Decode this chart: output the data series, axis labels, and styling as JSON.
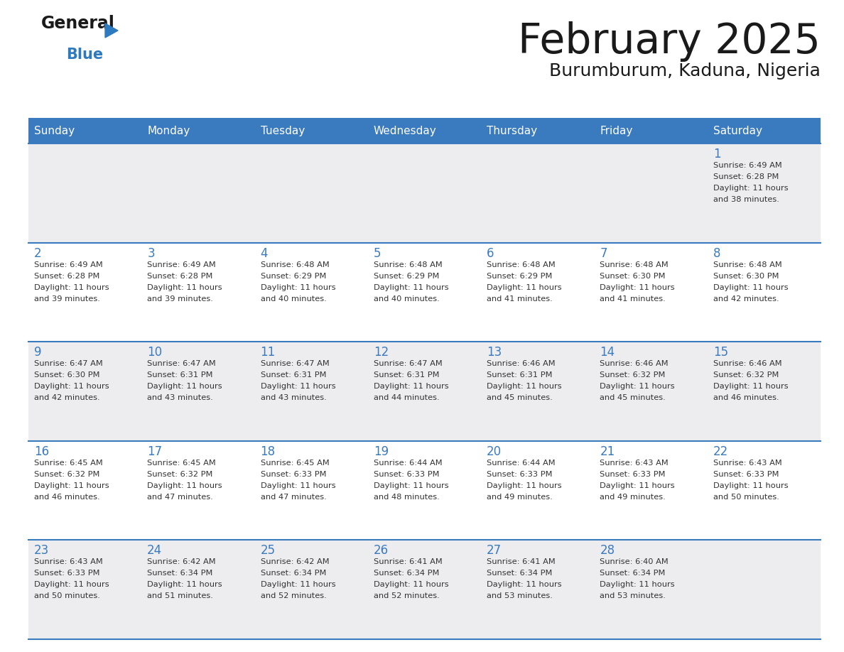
{
  "title": "February 2025",
  "subtitle": "Burumburum, Kaduna, Nigeria",
  "header_color": "#3a7abf",
  "header_text_color": "#ffffff",
  "day_names": [
    "Sunday",
    "Monday",
    "Tuesday",
    "Wednesday",
    "Thursday",
    "Friday",
    "Saturday"
  ],
  "bg_color": "#ffffff",
  "cell_bg_even": "#ededf0",
  "cell_bg_odd": "#ffffff",
  "date_color": "#3a7abf",
  "text_color": "#333333",
  "line_color": "#3a7abf",
  "logo_general_color": "#1a1a1a",
  "logo_blue_color": "#2e7abf",
  "calendar_data": [
    [
      null,
      null,
      null,
      null,
      null,
      null,
      {
        "day": 1,
        "sunrise": "6:49 AM",
        "sunset": "6:28 PM",
        "daylight": "11 hours and 38 minutes."
      }
    ],
    [
      {
        "day": 2,
        "sunrise": "6:49 AM",
        "sunset": "6:28 PM",
        "daylight": "11 hours and 39 minutes."
      },
      {
        "day": 3,
        "sunrise": "6:49 AM",
        "sunset": "6:28 PM",
        "daylight": "11 hours and 39 minutes."
      },
      {
        "day": 4,
        "sunrise": "6:48 AM",
        "sunset": "6:29 PM",
        "daylight": "11 hours and 40 minutes."
      },
      {
        "day": 5,
        "sunrise": "6:48 AM",
        "sunset": "6:29 PM",
        "daylight": "11 hours and 40 minutes."
      },
      {
        "day": 6,
        "sunrise": "6:48 AM",
        "sunset": "6:29 PM",
        "daylight": "11 hours and 41 minutes."
      },
      {
        "day": 7,
        "sunrise": "6:48 AM",
        "sunset": "6:30 PM",
        "daylight": "11 hours and 41 minutes."
      },
      {
        "day": 8,
        "sunrise": "6:48 AM",
        "sunset": "6:30 PM",
        "daylight": "11 hours and 42 minutes."
      }
    ],
    [
      {
        "day": 9,
        "sunrise": "6:47 AM",
        "sunset": "6:30 PM",
        "daylight": "11 hours and 42 minutes."
      },
      {
        "day": 10,
        "sunrise": "6:47 AM",
        "sunset": "6:31 PM",
        "daylight": "11 hours and 43 minutes."
      },
      {
        "day": 11,
        "sunrise": "6:47 AM",
        "sunset": "6:31 PM",
        "daylight": "11 hours and 43 minutes."
      },
      {
        "day": 12,
        "sunrise": "6:47 AM",
        "sunset": "6:31 PM",
        "daylight": "11 hours and 44 minutes."
      },
      {
        "day": 13,
        "sunrise": "6:46 AM",
        "sunset": "6:31 PM",
        "daylight": "11 hours and 45 minutes."
      },
      {
        "day": 14,
        "sunrise": "6:46 AM",
        "sunset": "6:32 PM",
        "daylight": "11 hours and 45 minutes."
      },
      {
        "day": 15,
        "sunrise": "6:46 AM",
        "sunset": "6:32 PM",
        "daylight": "11 hours and 46 minutes."
      }
    ],
    [
      {
        "day": 16,
        "sunrise": "6:45 AM",
        "sunset": "6:32 PM",
        "daylight": "11 hours and 46 minutes."
      },
      {
        "day": 17,
        "sunrise": "6:45 AM",
        "sunset": "6:32 PM",
        "daylight": "11 hours and 47 minutes."
      },
      {
        "day": 18,
        "sunrise": "6:45 AM",
        "sunset": "6:33 PM",
        "daylight": "11 hours and 47 minutes."
      },
      {
        "day": 19,
        "sunrise": "6:44 AM",
        "sunset": "6:33 PM",
        "daylight": "11 hours and 48 minutes."
      },
      {
        "day": 20,
        "sunrise": "6:44 AM",
        "sunset": "6:33 PM",
        "daylight": "11 hours and 49 minutes."
      },
      {
        "day": 21,
        "sunrise": "6:43 AM",
        "sunset": "6:33 PM",
        "daylight": "11 hours and 49 minutes."
      },
      {
        "day": 22,
        "sunrise": "6:43 AM",
        "sunset": "6:33 PM",
        "daylight": "11 hours and 50 minutes."
      }
    ],
    [
      {
        "day": 23,
        "sunrise": "6:43 AM",
        "sunset": "6:33 PM",
        "daylight": "11 hours and 50 minutes."
      },
      {
        "day": 24,
        "sunrise": "6:42 AM",
        "sunset": "6:34 PM",
        "daylight": "11 hours and 51 minutes."
      },
      {
        "day": 25,
        "sunrise": "6:42 AM",
        "sunset": "6:34 PM",
        "daylight": "11 hours and 52 minutes."
      },
      {
        "day": 26,
        "sunrise": "6:41 AM",
        "sunset": "6:34 PM",
        "daylight": "11 hours and 52 minutes."
      },
      {
        "day": 27,
        "sunrise": "6:41 AM",
        "sunset": "6:34 PM",
        "daylight": "11 hours and 53 minutes."
      },
      {
        "day": 28,
        "sunrise": "6:40 AM",
        "sunset": "6:34 PM",
        "daylight": "11 hours and 53 minutes."
      },
      null
    ]
  ]
}
